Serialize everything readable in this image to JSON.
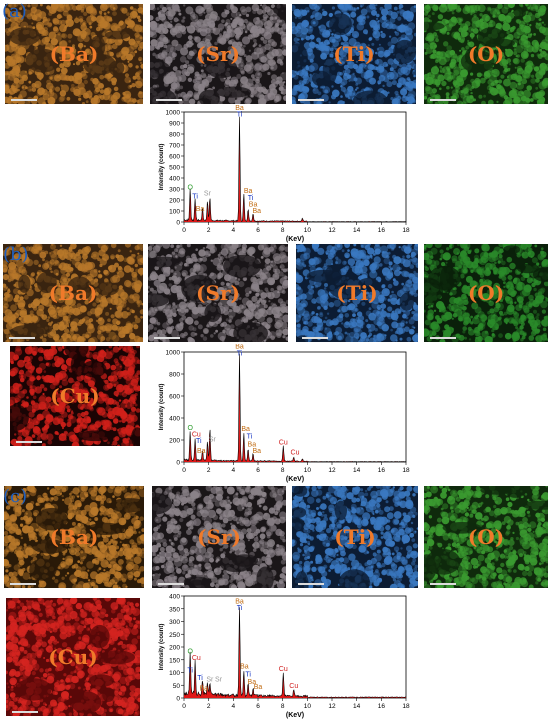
{
  "figure": {
    "panels": [
      {
        "tag": "(a)",
        "maps": [
          {
            "label": "(Ba)",
            "color": "#b8782a",
            "dark": "#3a2410"
          },
          {
            "label": "(Sr)",
            "color": "#8a8288",
            "dark": "#1a1618"
          },
          {
            "label": "(Ti)",
            "color": "#3a78c0",
            "dark": "#0c1c33"
          },
          {
            "label": "(O)",
            "color": "#3a9a30",
            "dark": "#0f2a0c"
          }
        ],
        "spectrum": {
          "ylabel": "Intensity (count)",
          "xlabel": "(KeV)",
          "ymax": 1000,
          "yticks": [
            0,
            100,
            200,
            300,
            400,
            500,
            600,
            700,
            800,
            900,
            1000
          ],
          "xticks": [
            0,
            2,
            4,
            6,
            8,
            10,
            12,
            14,
            16,
            18
          ],
          "peaks": [
            {
              "x": 0.5,
              "y": 280
            },
            {
              "x": 0.9,
              "y": 200
            },
            {
              "x": 1.5,
              "y": 110
            },
            {
              "x": 1.9,
              "y": 180
            },
            {
              "x": 2.1,
              "y": 215
            },
            {
              "x": 4.5,
              "y": 950
            },
            {
              "x": 4.85,
              "y": 250
            },
            {
              "x": 5.2,
              "y": 110
            },
            {
              "x": 5.6,
              "y": 70
            },
            {
              "x": 9.6,
              "y": 25
            }
          ],
          "labels": [
            {
              "text": "Ba",
              "x": 4.5,
              "y": 1020,
              "color": "#c06a10"
            },
            {
              "text": "Ti",
              "x": 4.5,
              "y": 960,
              "color": "#1030c0"
            },
            {
              "text": "O",
              "x": 0.5,
              "y": 295,
              "color": "#2a9a2a"
            },
            {
              "text": "Sr",
              "x": 1.9,
              "y": 240,
              "color": "#999999"
            },
            {
              "text": "Ti",
              "x": 0.9,
              "y": 215,
              "color": "#1030c0"
            },
            {
              "text": "Ba",
              "x": 1.3,
              "y": 100,
              "color": "#c06a10"
            },
            {
              "text": "Ba",
              "x": 5.2,
              "y": 265,
              "color": "#c06a10"
            },
            {
              "text": "Ti",
              "x": 5.4,
              "y": 200,
              "color": "#1030c0"
            },
            {
              "text": "Ba",
              "x": 5.6,
              "y": 140,
              "color": "#c06a10"
            },
            {
              "text": "Ba",
              "x": 5.9,
              "y": 80,
              "color": "#c06a10"
            }
          ]
        }
      },
      {
        "tag": "(b)",
        "maps": [
          {
            "label": "(Ba)",
            "color": "#b8782a",
            "dark": "#3a2410"
          },
          {
            "label": "(Sr)",
            "color": "#8a8288",
            "dark": "#1a1618"
          },
          {
            "label": "(Ti)",
            "color": "#3a78c0",
            "dark": "#0c1c33"
          },
          {
            "label": "(O)",
            "color": "#2a8a2a",
            "dark": "#0a200a"
          },
          {
            "label": "(Cu)",
            "color": "#d0201a",
            "dark": "#1a0404"
          }
        ],
        "spectrum": {
          "ylabel": "Intensity (count)",
          "xlabel": "(KeV)",
          "ymax": 1000,
          "yticks": [
            0,
            200,
            400,
            600,
            800,
            1000
          ],
          "xticks": [
            0,
            2,
            4,
            6,
            8,
            10,
            12,
            14,
            16,
            18
          ],
          "peaks": [
            {
              "x": 0.5,
              "y": 260
            },
            {
              "x": 0.9,
              "y": 190
            },
            {
              "x": 1.5,
              "y": 100
            },
            {
              "x": 1.9,
              "y": 180
            },
            {
              "x": 2.1,
              "y": 300
            },
            {
              "x": 4.5,
              "y": 980
            },
            {
              "x": 4.85,
              "y": 260
            },
            {
              "x": 5.2,
              "y": 110
            },
            {
              "x": 5.6,
              "y": 70
            },
            {
              "x": 8.05,
              "y": 140
            },
            {
              "x": 8.9,
              "y": 40
            },
            {
              "x": 9.6,
              "y": 20
            }
          ],
          "labels": [
            {
              "text": "Ba",
              "x": 4.5,
              "y": 1030,
              "color": "#c06a10"
            },
            {
              "text": "Ti",
              "x": 4.5,
              "y": 970,
              "color": "#1030c0"
            },
            {
              "text": "O",
              "x": 0.5,
              "y": 290,
              "color": "#2a9a2a"
            },
            {
              "text": "Cu",
              "x": 1.0,
              "y": 230,
              "color": "#d02020"
            },
            {
              "text": "Ti",
              "x": 1.2,
              "y": 175,
              "color": "#1030c0"
            },
            {
              "text": "Sr",
              "x": 2.3,
              "y": 185,
              "color": "#999999"
            },
            {
              "text": "Ba",
              "x": 1.4,
              "y": 80,
              "color": "#c06a10"
            },
            {
              "text": "Ba",
              "x": 5.0,
              "y": 280,
              "color": "#c06a10"
            },
            {
              "text": "Ti",
              "x": 5.3,
              "y": 215,
              "color": "#1030c0"
            },
            {
              "text": "Ba",
              "x": 5.5,
              "y": 140,
              "color": "#c06a10"
            },
            {
              "text": "Ba",
              "x": 5.9,
              "y": 80,
              "color": "#c06a10"
            },
            {
              "text": "Cu",
              "x": 8.05,
              "y": 160,
              "color": "#d02020"
            },
            {
              "text": "Cu",
              "x": 9.0,
              "y": 70,
              "color": "#d02020"
            }
          ]
        }
      },
      {
        "tag": "(c)",
        "maps": [
          {
            "label": "(Ba)",
            "color": "#b8782a",
            "dark": "#2a1a08"
          },
          {
            "label": "(Sr)",
            "color": "#8a8288",
            "dark": "#1a1618"
          },
          {
            "label": "(Ti)",
            "color": "#3a78c0",
            "dark": "#0c1c33"
          },
          {
            "label": "(O)",
            "color": "#3a9a30",
            "dark": "#0f2a0c"
          },
          {
            "label": "(Cu)",
            "color": "#d42420",
            "dark": "#5a0808"
          }
        ],
        "spectrum": {
          "ylabel": "Intensity (count)",
          "xlabel": "(KeV)",
          "ymax": 400,
          "yticks": [
            0,
            50,
            100,
            150,
            200,
            250,
            300,
            350,
            400
          ],
          "xticks": [
            0,
            2,
            4,
            6,
            8,
            10,
            12,
            14,
            16,
            18
          ],
          "peaks": [
            {
              "x": 0.5,
              "y": 165
            },
            {
              "x": 0.9,
              "y": 130
            },
            {
              "x": 1.5,
              "y": 60
            },
            {
              "x": 1.9,
              "y": 40
            },
            {
              "x": 2.1,
              "y": 50
            },
            {
              "x": 4.5,
              "y": 350
            },
            {
              "x": 4.85,
              "y": 100
            },
            {
              "x": 5.2,
              "y": 50
            },
            {
              "x": 5.6,
              "y": 30
            },
            {
              "x": 8.05,
              "y": 90
            },
            {
              "x": 8.9,
              "y": 25
            }
          ],
          "labels": [
            {
              "text": "Ba",
              "x": 4.5,
              "y": 370,
              "color": "#c06a10"
            },
            {
              "text": "Ti",
              "x": 4.5,
              "y": 345,
              "color": "#1030c0"
            },
            {
              "text": "O",
              "x": 0.5,
              "y": 175,
              "color": "#2a9a2a"
            },
            {
              "text": "Cu",
              "x": 1.0,
              "y": 150,
              "color": "#d02020"
            },
            {
              "text": "Ti",
              "x": 0.5,
              "y": 100,
              "color": "#1030c0"
            },
            {
              "text": "Ti",
              "x": 1.3,
              "y": 70,
              "color": "#1030c0"
            },
            {
              "text": "Sr",
              "x": 2.1,
              "y": 65,
              "color": "#999999"
            },
            {
              "text": "Sr",
              "x": 2.8,
              "y": 65,
              "color": "#999999"
            },
            {
              "text": "Ba",
              "x": 1.6,
              "y": 30,
              "color": "#c06a10"
            },
            {
              "text": "Ba",
              "x": 4.9,
              "y": 115,
              "color": "#c06a10"
            },
            {
              "text": "Ti",
              "x": 5.2,
              "y": 85,
              "color": "#1030c0"
            },
            {
              "text": "Ba",
              "x": 5.5,
              "y": 55,
              "color": "#c06a10"
            },
            {
              "text": "Ba",
              "x": 6.0,
              "y": 35,
              "color": "#c06a10"
            },
            {
              "text": "Cu",
              "x": 8.05,
              "y": 105,
              "color": "#d02020"
            },
            {
              "text": "Cu",
              "x": 8.9,
              "y": 40,
              "color": "#d02020"
            }
          ]
        }
      }
    ]
  }
}
